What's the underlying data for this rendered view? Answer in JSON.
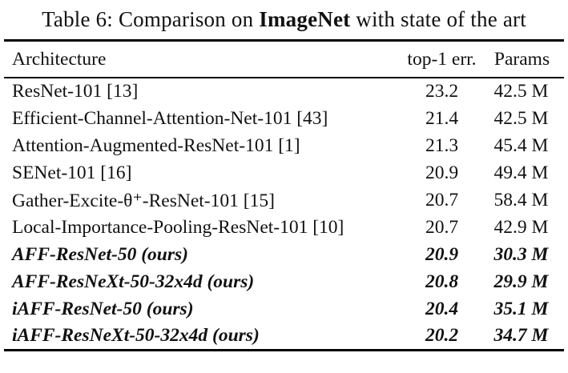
{
  "title": {
    "prefix": "Table 6: Comparison on ",
    "emphasis": "ImageNet",
    "suffix": " with state of the art"
  },
  "table": {
    "columns": {
      "architecture": "Architecture",
      "top1_err": "top-1 err.",
      "params": "Params"
    },
    "rows": [
      {
        "architecture": "ResNet-101 [13]",
        "top1_err": "23.2",
        "params": "42.5 M",
        "ours": false
      },
      {
        "architecture": "Efficient-Channel-Attention-Net-101 [43]",
        "top1_err": "21.4",
        "params": "42.5 M",
        "ours": false
      },
      {
        "architecture": "Attention-Augmented-ResNet-101 [1]",
        "top1_err": "21.3",
        "params": "45.4 M",
        "ours": false
      },
      {
        "architecture": "SENet-101 [16]",
        "top1_err": "20.9",
        "params": "49.4 M",
        "ours": false
      },
      {
        "architecture": "Gather-Excite-θ⁺-ResNet-101 [15]",
        "top1_err": "20.7",
        "params": "58.4 M",
        "ours": false
      },
      {
        "architecture": "Local-Importance-Pooling-ResNet-101 [10]",
        "top1_err": "20.7",
        "params": "42.9 M",
        "ours": false
      },
      {
        "architecture": "AFF-ResNet-50 (ours)",
        "top1_err": "20.9",
        "params": "30.3 M",
        "ours": true
      },
      {
        "architecture": "AFF-ResNeXt-50-32x4d (ours)",
        "top1_err": "20.8",
        "params": "29.9 M",
        "ours": true
      },
      {
        "architecture": "iAFF-ResNet-50 (ours)",
        "top1_err": "20.4",
        "params": "35.1 M",
        "ours": true
      },
      {
        "architecture": "iAFF-ResNeXt-50-32x4d (ours)",
        "top1_err": "20.2",
        "params": "34.7 M",
        "ours": true
      }
    ]
  },
  "colors": {
    "text": "#111111",
    "rule": "#000000",
    "background": "#ffffff"
  }
}
